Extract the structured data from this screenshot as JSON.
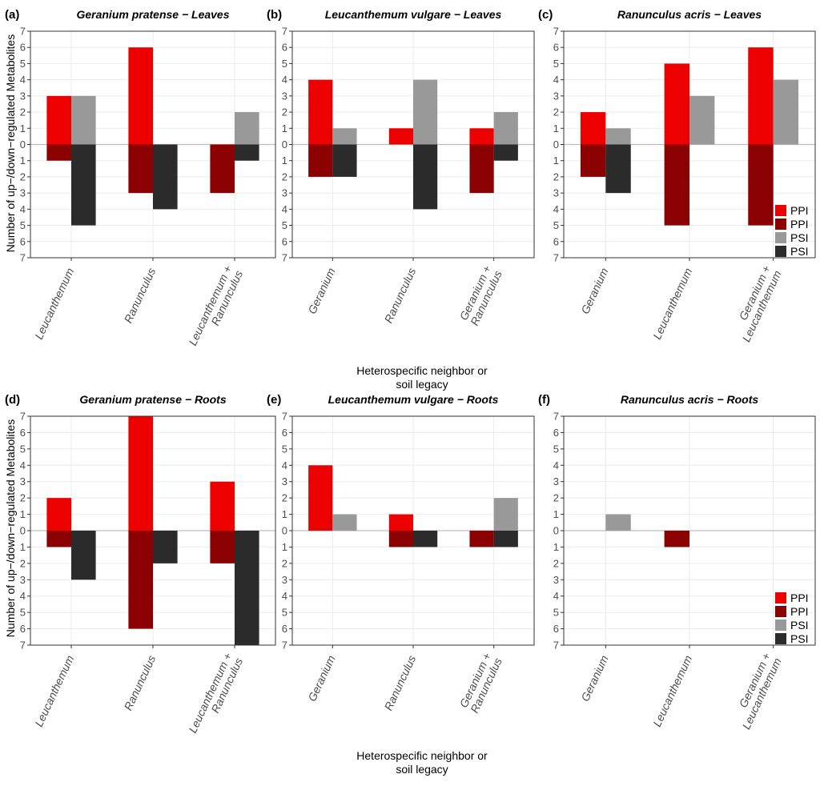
{
  "colors": {
    "PPI_up": "#ec0000",
    "PPI_down": "#8b0000",
    "PSI_up": "#999999",
    "PSI_down": "#2b2b2b",
    "grid": "#ebebeb",
    "zero_line": "#bdbdbd",
    "panel_border": "#333333"
  },
  "shared": {
    "ylabel": "Number of up−/down−regulated Metabolites",
    "xlabel_line1": "Heterospecific neighbor or",
    "xlabel_line2": "soil legacy",
    "ytick_labels": [
      "7",
      "6",
      "5",
      "4",
      "3",
      "2",
      "1",
      "0",
      "1",
      "2",
      "3",
      "4",
      "5",
      "6",
      "7"
    ]
  },
  "legend": {
    "position": "bottom-right",
    "entries": [
      {
        "label": "PPI",
        "color_key": "PPI_up"
      },
      {
        "label": "PPI",
        "color_key": "PPI_down"
      },
      {
        "label": "PSI",
        "color_key": "PSI_up"
      },
      {
        "label": "PSI",
        "color_key": "PSI_down"
      }
    ]
  },
  "chart_data": [
    {
      "type": "bar",
      "panel_letter": "(a)",
      "title": "Geranium pratense − Leaves",
      "ylim": [
        -7,
        7
      ],
      "grid": true,
      "legend": false,
      "categories": [
        [
          "Leucanthemum"
        ],
        [
          "Ranunculus"
        ],
        [
          "Leucanthemum +",
          "Ranunculus"
        ]
      ],
      "series": [
        {
          "name": "PPI",
          "up": [
            3,
            6,
            0
          ],
          "down": [
            1,
            3,
            3
          ]
        },
        {
          "name": "PSI",
          "up": [
            3,
            0,
            2
          ],
          "down": [
            5,
            4,
            1
          ]
        }
      ]
    },
    {
      "type": "bar",
      "panel_letter": "(b)",
      "title": "Leucanthemum vulgare − Leaves",
      "ylim": [
        -7,
        7
      ],
      "grid": true,
      "legend": false,
      "categories": [
        [
          "Geranium"
        ],
        [
          "Ranunculus"
        ],
        [
          "Geranium +",
          "Ranunculus"
        ]
      ],
      "series": [
        {
          "name": "PPI",
          "up": [
            4,
            1,
            1
          ],
          "down": [
            2,
            0,
            3
          ]
        },
        {
          "name": "PSI",
          "up": [
            1,
            4,
            2
          ],
          "down": [
            2,
            4,
            1
          ]
        }
      ]
    },
    {
      "type": "bar",
      "panel_letter": "(c)",
      "title": "Ranunculus acris − Leaves",
      "ylim": [
        -7,
        7
      ],
      "grid": true,
      "legend": true,
      "categories": [
        [
          "Geranium"
        ],
        [
          "Leucanthemum"
        ],
        [
          "Geranium +",
          "Leucanthemum"
        ]
      ],
      "series": [
        {
          "name": "PPI",
          "up": [
            2,
            5,
            6
          ],
          "down": [
            2,
            5,
            5
          ]
        },
        {
          "name": "PSI",
          "up": [
            1,
            3,
            4
          ],
          "down": [
            3,
            0,
            0
          ]
        }
      ]
    },
    {
      "type": "bar",
      "panel_letter": "(d)",
      "title": "Geranium pratense − Roots",
      "ylim": [
        -7,
        7
      ],
      "grid": true,
      "legend": false,
      "categories": [
        [
          "Leucanthemum"
        ],
        [
          "Ranunculus"
        ],
        [
          "Leucanthemum +",
          "Ranunculus"
        ]
      ],
      "series": [
        {
          "name": "PPI",
          "up": [
            2,
            7,
            3
          ],
          "down": [
            1,
            6,
            2
          ]
        },
        {
          "name": "PSI",
          "up": [
            0,
            0,
            0
          ],
          "down": [
            3,
            2,
            7
          ]
        }
      ]
    },
    {
      "type": "bar",
      "panel_letter": "(e)",
      "title": "Leucanthemum vulgare − Roots",
      "ylim": [
        -7,
        7
      ],
      "grid": true,
      "legend": false,
      "categories": [
        [
          "Geranium"
        ],
        [
          "Ranunculus"
        ],
        [
          "Geranium +",
          "Ranunculus"
        ]
      ],
      "series": [
        {
          "name": "PPI",
          "up": [
            4,
            1,
            0
          ],
          "down": [
            0,
            1,
            1
          ]
        },
        {
          "name": "PSI",
          "up": [
            1,
            0,
            2
          ],
          "down": [
            0,
            1,
            1
          ]
        }
      ]
    },
    {
      "type": "bar",
      "panel_letter": "(f)",
      "title": "Ranunculus acris − Roots",
      "ylim": [
        -7,
        7
      ],
      "grid": true,
      "legend": true,
      "categories": [
        [
          "Geranium"
        ],
        [
          "Leucanthemum"
        ],
        [
          "Geranium +",
          "Leucanthemum"
        ]
      ],
      "series": [
        {
          "name": "PPI",
          "up": [
            0,
            0,
            0
          ],
          "down": [
            0,
            1,
            0
          ]
        },
        {
          "name": "PSI",
          "up": [
            1,
            0,
            0
          ],
          "down": [
            0,
            0,
            0
          ]
        }
      ]
    }
  ]
}
